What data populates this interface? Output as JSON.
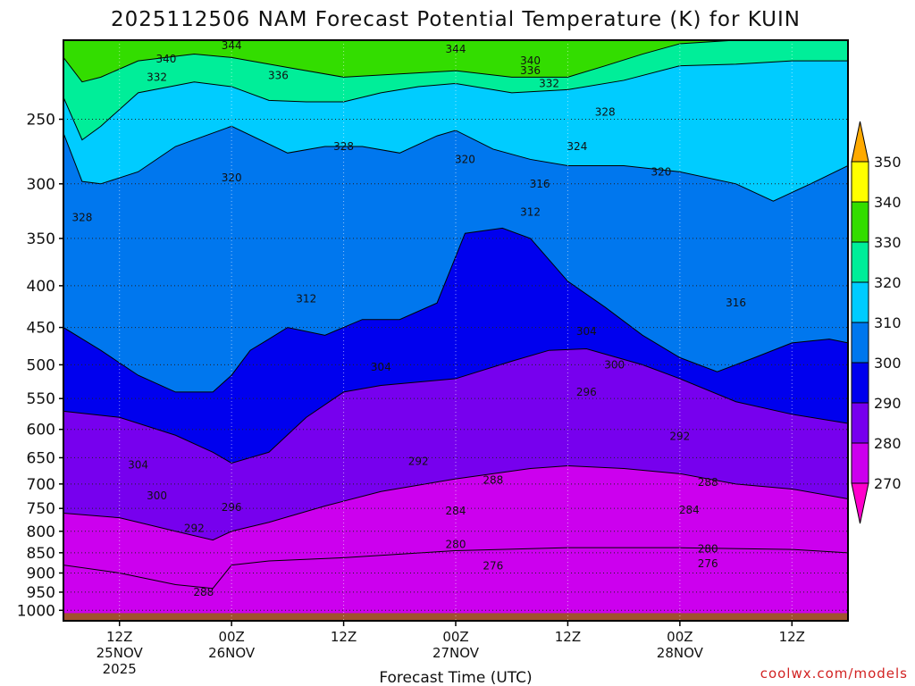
{
  "title": "2025112506 NAM Forecast Potential Temperature (K) for KUIN",
  "credit": "coolwx.com/models",
  "chart_data": {
    "type": "heatmap",
    "title": "2025112506 NAM Forecast Potential Temperature (K) for KUIN",
    "xlabel": "Forecast Time (UTC)",
    "ylabel": "",
    "units": "K",
    "x_hours_range": [
      0,
      84
    ],
    "y_pressure_range": [
      1030,
      200
    ],
    "y_scale": "log",
    "y_ticks": [
      "250",
      "300",
      "350",
      "400",
      "450",
      "500",
      "550",
      "600",
      "650",
      "700",
      "750",
      "800",
      "850",
      "900",
      "950",
      "1000"
    ],
    "x_ticks": [
      {
        "hour": 6,
        "label": "12Z",
        "date": "25NOV",
        "year": "2025"
      },
      {
        "hour": 18,
        "label": "00Z",
        "date": "26NOV",
        "year": ""
      },
      {
        "hour": 30,
        "label": "12Z",
        "date": "",
        "year": ""
      },
      {
        "hour": 42,
        "label": "00Z",
        "date": "27NOV",
        "year": ""
      },
      {
        "hour": 54,
        "label": "12Z",
        "date": "",
        "year": ""
      },
      {
        "hour": 66,
        "label": "00Z",
        "date": "28NOV",
        "year": ""
      },
      {
        "hour": 78,
        "label": "12Z",
        "date": "",
        "year": ""
      }
    ],
    "colorbar": {
      "labels": [
        "350",
        "340",
        "330",
        "320",
        "310",
        "300",
        "290",
        "280",
        "270"
      ],
      "fills": [
        {
          "value": 345,
          "color": "#ffff00"
        },
        {
          "value": 335,
          "color": "#33dd00"
        },
        {
          "value": 325,
          "color": "#00ee99"
        },
        {
          "value": 315,
          "color": "#00ccff"
        },
        {
          "value": 305,
          "color": "#0077ee"
        },
        {
          "value": 295,
          "color": "#0000ee"
        },
        {
          "value": 285,
          "color": "#7700ee"
        },
        {
          "value": 275,
          "color": "#cc00ee"
        },
        {
          "value": 265,
          "color": "#ff00cc"
        }
      ],
      "over_color": "#ffaa00",
      "under_color": "#ff00cc"
    },
    "bands": [
      {
        "name": "280",
        "color": "#cc00ee",
        "points": [
          [
            0,
            880
          ],
          [
            6,
            900
          ],
          [
            12,
            930
          ],
          [
            16,
            940
          ],
          [
            18,
            880
          ],
          [
            22,
            870
          ],
          [
            30,
            862
          ],
          [
            42,
            845
          ],
          [
            54,
            838
          ],
          [
            66,
            838
          ],
          [
            78,
            842
          ],
          [
            84,
            850
          ]
        ]
      },
      {
        "name": "290",
        "color": "#7700ee",
        "points": [
          [
            0,
            760
          ],
          [
            6,
            770
          ],
          [
            12,
            800
          ],
          [
            16,
            820
          ],
          [
            18,
            800
          ],
          [
            22,
            780
          ],
          [
            28,
            745
          ],
          [
            34,
            715
          ],
          [
            42,
            690
          ],
          [
            50,
            670
          ],
          [
            54,
            665
          ],
          [
            60,
            670
          ],
          [
            66,
            680
          ],
          [
            72,
            700
          ],
          [
            78,
            710
          ],
          [
            84,
            730
          ]
        ]
      },
      {
        "name": "300",
        "color": "#0000ee",
        "points": [
          [
            0,
            570
          ],
          [
            6,
            580
          ],
          [
            12,
            610
          ],
          [
            16,
            640
          ],
          [
            18,
            660
          ],
          [
            22,
            640
          ],
          [
            26,
            580
          ],
          [
            30,
            540
          ],
          [
            34,
            530
          ],
          [
            42,
            520
          ],
          [
            48,
            495
          ],
          [
            52,
            480
          ],
          [
            56,
            478
          ],
          [
            62,
            500
          ],
          [
            66,
            520
          ],
          [
            72,
            555
          ],
          [
            78,
            575
          ],
          [
            84,
            590
          ]
        ]
      },
      {
        "name": "310",
        "color": "#0077ee",
        "points": [
          [
            0,
            450
          ],
          [
            4,
            480
          ],
          [
            8,
            515
          ],
          [
            12,
            540
          ],
          [
            16,
            540
          ],
          [
            18,
            515
          ],
          [
            20,
            480
          ],
          [
            22,
            465
          ],
          [
            24,
            450
          ],
          [
            28,
            460
          ],
          [
            32,
            440
          ],
          [
            36,
            440
          ],
          [
            40,
            420
          ],
          [
            43,
            345
          ],
          [
            47,
            340
          ],
          [
            50,
            350
          ],
          [
            54,
            395
          ],
          [
            58,
            425
          ],
          [
            62,
            460
          ],
          [
            66,
            490
          ],
          [
            70,
            510
          ],
          [
            74,
            490
          ],
          [
            78,
            470
          ],
          [
            82,
            465
          ],
          [
            84,
            470
          ]
        ]
      },
      {
        "name": "320",
        "color": "#00ccff",
        "points": [
          [
            0,
            260
          ],
          [
            2,
            298
          ],
          [
            4,
            300
          ],
          [
            8,
            290
          ],
          [
            12,
            270
          ],
          [
            18,
            255
          ],
          [
            24,
            275
          ],
          [
            28,
            270
          ],
          [
            32,
            270
          ],
          [
            36,
            275
          ],
          [
            40,
            262
          ],
          [
            42,
            258
          ],
          [
            46,
            272
          ],
          [
            50,
            280
          ],
          [
            54,
            285
          ],
          [
            60,
            285
          ],
          [
            66,
            290
          ],
          [
            72,
            300
          ],
          [
            76,
            315
          ],
          [
            80,
            300
          ],
          [
            84,
            285
          ]
        ]
      },
      {
        "name": "330",
        "color": "#00ee99",
        "points": [
          [
            0,
            235
          ],
          [
            2,
            265
          ],
          [
            4,
            255
          ],
          [
            8,
            232
          ],
          [
            14,
            225
          ],
          [
            18,
            228
          ],
          [
            22,
            237
          ],
          [
            26,
            238
          ],
          [
            30,
            238
          ],
          [
            34,
            232
          ],
          [
            38,
            228
          ],
          [
            42,
            226
          ],
          [
            48,
            232
          ],
          [
            54,
            230
          ],
          [
            60,
            224
          ],
          [
            66,
            215
          ],
          [
            72,
            214
          ],
          [
            78,
            212
          ],
          [
            84,
            212
          ]
        ]
      },
      {
        "name": "340",
        "color": "#33dd00",
        "points": [
          [
            0,
            210
          ],
          [
            2,
            225
          ],
          [
            4,
            222
          ],
          [
            8,
            212
          ],
          [
            14,
            208
          ],
          [
            18,
            210
          ],
          [
            24,
            216
          ],
          [
            30,
            222
          ],
          [
            36,
            220
          ],
          [
            42,
            218
          ],
          [
            48,
            222
          ],
          [
            54,
            222
          ],
          [
            58,
            215
          ],
          [
            62,
            208
          ],
          [
            66,
            202
          ],
          [
            72,
            200
          ],
          [
            84,
            200
          ]
        ]
      }
    ],
    "contour_labels": [
      {
        "value": "344",
        "hour": 18,
        "p": 203
      },
      {
        "value": "340",
        "hour": 11,
        "p": 211
      },
      {
        "value": "332",
        "hour": 10,
        "p": 222
      },
      {
        "value": "336",
        "hour": 23,
        "p": 221
      },
      {
        "value": "344",
        "hour": 42,
        "p": 205
      },
      {
        "value": "340",
        "hour": 50,
        "p": 212
      },
      {
        "value": "336",
        "hour": 50,
        "p": 218
      },
      {
        "value": "332",
        "hour": 52,
        "p": 226
      },
      {
        "value": "328",
        "hour": 30,
        "p": 270
      },
      {
        "value": "328",
        "hour": 58,
        "p": 245
      },
      {
        "value": "324",
        "hour": 55,
        "p": 270
      },
      {
        "value": "320",
        "hour": 43,
        "p": 280
      },
      {
        "value": "320",
        "hour": 64,
        "p": 290
      },
      {
        "value": "320",
        "hour": 18,
        "p": 295
      },
      {
        "value": "328",
        "hour": 2,
        "p": 330
      },
      {
        "value": "316",
        "hour": 51,
        "p": 300
      },
      {
        "value": "312",
        "hour": 50,
        "p": 325
      },
      {
        "value": "312",
        "hour": 26,
        "p": 415
      },
      {
        "value": "316",
        "hour": 72,
        "p": 420
      },
      {
        "value": "304",
        "hour": 56,
        "p": 455
      },
      {
        "value": "304",
        "hour": 34,
        "p": 503
      },
      {
        "value": "300",
        "hour": 59,
        "p": 500
      },
      {
        "value": "296",
        "hour": 56,
        "p": 540
      },
      {
        "value": "292",
        "hour": 66,
        "p": 612
      },
      {
        "value": "304",
        "hour": 8,
        "p": 663
      },
      {
        "value": "292",
        "hour": 38,
        "p": 657
      },
      {
        "value": "288",
        "hour": 46,
        "p": 692
      },
      {
        "value": "288",
        "hour": 69,
        "p": 697
      },
      {
        "value": "300",
        "hour": 10,
        "p": 724
      },
      {
        "value": "296",
        "hour": 18,
        "p": 748
      },
      {
        "value": "292",
        "hour": 14,
        "p": 793
      },
      {
        "value": "284",
        "hour": 42,
        "p": 755
      },
      {
        "value": "284",
        "hour": 67,
        "p": 753
      },
      {
        "value": "280",
        "hour": 42,
        "p": 830
      },
      {
        "value": "280",
        "hour": 69,
        "p": 841
      },
      {
        "value": "276",
        "hour": 46,
        "p": 882
      },
      {
        "value": "276",
        "hour": 69,
        "p": 876
      },
      {
        "value": "288",
        "hour": 15,
        "p": 950
      }
    ]
  }
}
